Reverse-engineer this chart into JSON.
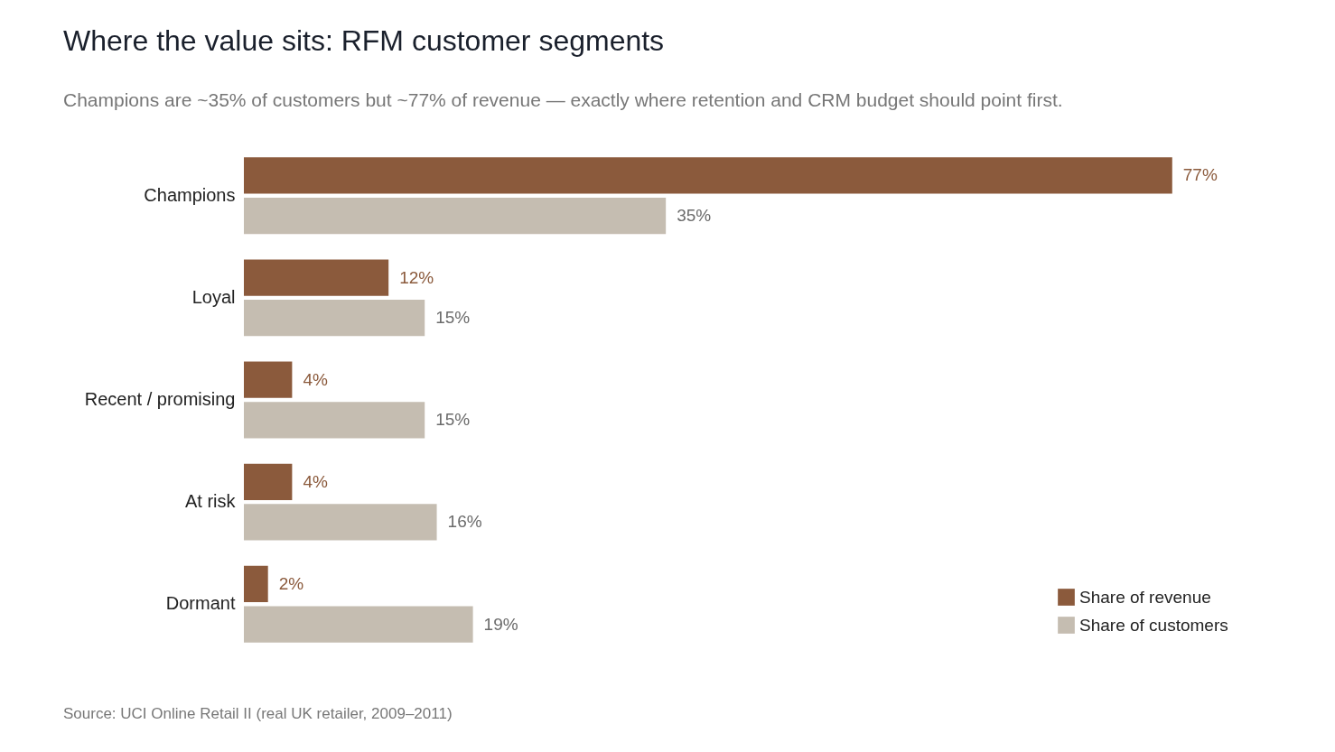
{
  "chart_data": {
    "type": "bar",
    "orientation": "horizontal",
    "title": "Where the value sits: RFM customer segments",
    "subtitle": "Champions are ~35% of customers but ~77% of revenue — exactly where retention and CRM budget should point first.",
    "categories": [
      "Champions",
      "Loyal",
      "Recent / promising",
      "At risk",
      "Dormant"
    ],
    "series": [
      {
        "name": "Share of revenue",
        "color": "#8b5a3c",
        "values": [
          77,
          12,
          4,
          4,
          2
        ],
        "value_labels": [
          "77%",
          "12%",
          "4%",
          "4%",
          "2%"
        ]
      },
      {
        "name": "Share of customers",
        "color": "#c5bdb1",
        "values": [
          35,
          15,
          15,
          16,
          19
        ],
        "value_labels": [
          "35%",
          "15%",
          "15%",
          "16%",
          "19%"
        ]
      }
    ],
    "legend": "bottom right",
    "grid": false,
    "tick_labels": "y",
    "annotations": [
      "Source: UCI Online Retail II (real UK retailer, 2009–2011)"
    ]
  }
}
